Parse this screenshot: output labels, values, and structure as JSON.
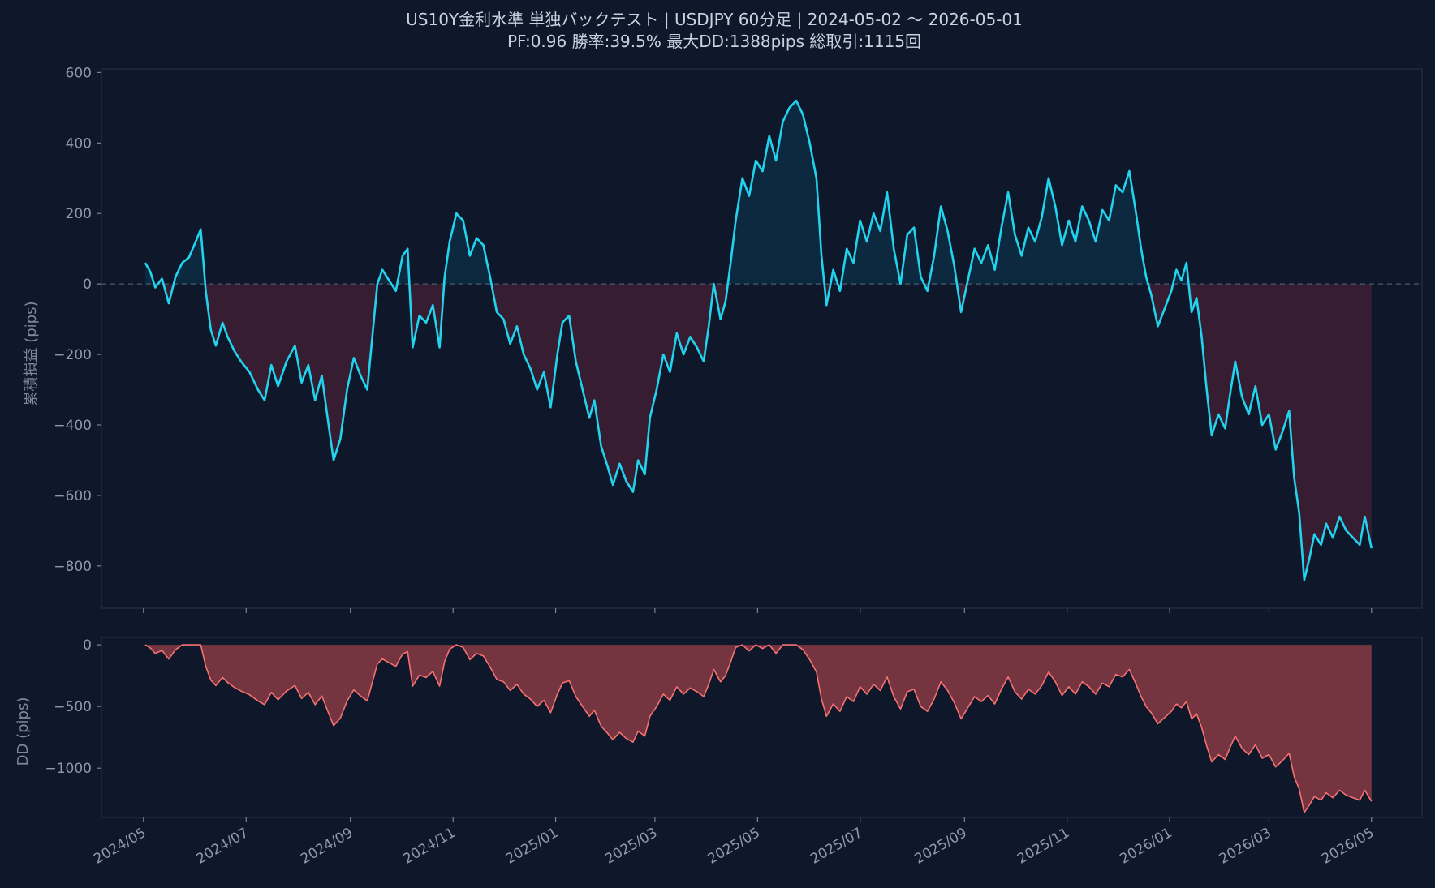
{
  "title": "US10Y金利水準 単独バックテスト | USDJPY 60分足 | 2024-05-02 〜 2026-05-01",
  "subtitle": "PF:0.96  勝率:39.5%  最大DD:1388pips  総取引:1115回",
  "colors": {
    "background": "#0f172a",
    "line": "#22d3ee",
    "positive_fill": "#0e2a40",
    "negative_fill": "#3b1e33",
    "dd_line": "#f87171",
    "dd_fill": "#7f3944",
    "frame": "#243044",
    "tick_text": "#8b9ab0",
    "zero_line": "#4b5a70"
  },
  "chart_data": [
    {
      "type": "line",
      "name": "equity",
      "ylabel": "累積損益 (pips)",
      "ylim": [
        -920,
        610
      ],
      "yticks": [
        600,
        400,
        200,
        0,
        -200,
        -400,
        -600,
        -800
      ],
      "ytick_labels": [
        "600",
        "400",
        "200",
        "0",
        "−200",
        "−400",
        "−600",
        "−800"
      ],
      "zero_line": true,
      "fill_to_zero": true,
      "x_start": "2024-05-02",
      "x_end": "2026-05-01",
      "points": [
        [
          "2024-05-02",
          60
        ],
        [
          "2024-05-05",
          35
        ],
        [
          "2024-05-08",
          -10
        ],
        [
          "2024-05-12",
          15
        ],
        [
          "2024-05-16",
          -55
        ],
        [
          "2024-05-20",
          20
        ],
        [
          "2024-05-24",
          60
        ],
        [
          "2024-05-28",
          75
        ],
        [
          "2024-06-01",
          120
        ],
        [
          "2024-06-04",
          155
        ],
        [
          "2024-06-07",
          -20
        ],
        [
          "2024-06-10",
          -130
        ],
        [
          "2024-06-13",
          -175
        ],
        [
          "2024-06-17",
          -110
        ],
        [
          "2024-06-20",
          -150
        ],
        [
          "2024-06-24",
          -190
        ],
        [
          "2024-06-28",
          -220
        ],
        [
          "2024-07-03",
          -250
        ],
        [
          "2024-07-08",
          -300
        ],
        [
          "2024-07-12",
          -330
        ],
        [
          "2024-07-16",
          -230
        ],
        [
          "2024-07-20",
          -290
        ],
        [
          "2024-07-25",
          -220
        ],
        [
          "2024-07-30",
          -175
        ],
        [
          "2024-08-03",
          -280
        ],
        [
          "2024-08-07",
          -230
        ],
        [
          "2024-08-11",
          -330
        ],
        [
          "2024-08-15",
          -260
        ],
        [
          "2024-08-19",
          -400
        ],
        [
          "2024-08-22",
          -500
        ],
        [
          "2024-08-26",
          -440
        ],
        [
          "2024-08-30",
          -300
        ],
        [
          "2024-09-03",
          -210
        ],
        [
          "2024-09-07",
          -260
        ],
        [
          "2024-09-11",
          -300
        ],
        [
          "2024-09-14",
          -150
        ],
        [
          "2024-09-17",
          0
        ],
        [
          "2024-09-20",
          40
        ],
        [
          "2024-09-24",
          10
        ],
        [
          "2024-09-28",
          -20
        ],
        [
          "2024-10-02",
          80
        ],
        [
          "2024-10-05",
          100
        ],
        [
          "2024-10-08",
          -180
        ],
        [
          "2024-10-12",
          -90
        ],
        [
          "2024-10-16",
          -110
        ],
        [
          "2024-10-20",
          -60
        ],
        [
          "2024-10-24",
          -180
        ],
        [
          "2024-10-27",
          20
        ],
        [
          "2024-10-30",
          120
        ],
        [
          "2024-11-03",
          200
        ],
        [
          "2024-11-07",
          180
        ],
        [
          "2024-11-11",
          80
        ],
        [
          "2024-11-15",
          130
        ],
        [
          "2024-11-19",
          110
        ],
        [
          "2024-11-23",
          20
        ],
        [
          "2024-11-27",
          -80
        ],
        [
          "2024-12-01",
          -100
        ],
        [
          "2024-12-05",
          -170
        ],
        [
          "2024-12-09",
          -120
        ],
        [
          "2024-12-13",
          -200
        ],
        [
          "2024-12-17",
          -240
        ],
        [
          "2024-12-21",
          -300
        ],
        [
          "2024-12-25",
          -250
        ],
        [
          "2024-12-29",
          -350
        ],
        [
          "2025-01-02",
          -200
        ],
        [
          "2025-01-05",
          -110
        ],
        [
          "2025-01-09",
          -90
        ],
        [
          "2025-01-13",
          -220
        ],
        [
          "2025-01-17",
          -300
        ],
        [
          "2025-01-21",
          -380
        ],
        [
          "2025-01-24",
          -330
        ],
        [
          "2025-01-28",
          -460
        ],
        [
          "2025-02-01",
          -520
        ],
        [
          "2025-02-04",
          -570
        ],
        [
          "2025-02-08",
          -510
        ],
        [
          "2025-02-12",
          -560
        ],
        [
          "2025-02-16",
          -590
        ],
        [
          "2025-02-19",
          -500
        ],
        [
          "2025-02-23",
          -540
        ],
        [
          "2025-02-26",
          -380
        ],
        [
          "2025-03-02",
          -300
        ],
        [
          "2025-03-06",
          -200
        ],
        [
          "2025-03-10",
          -250
        ],
        [
          "2025-03-14",
          -140
        ],
        [
          "2025-03-18",
          -200
        ],
        [
          "2025-03-22",
          -150
        ],
        [
          "2025-03-26",
          -180
        ],
        [
          "2025-03-30",
          -220
        ],
        [
          "2025-04-02",
          -120
        ],
        [
          "2025-04-05",
          0
        ],
        [
          "2025-04-09",
          -100
        ],
        [
          "2025-04-12",
          -50
        ],
        [
          "2025-04-15",
          60
        ],
        [
          "2025-04-18",
          180
        ],
        [
          "2025-04-22",
          300
        ],
        [
          "2025-04-26",
          250
        ],
        [
          "2025-04-30",
          350
        ],
        [
          "2025-05-04",
          320
        ],
        [
          "2025-05-08",
          420
        ],
        [
          "2025-05-12",
          350
        ],
        [
          "2025-05-16",
          460
        ],
        [
          "2025-05-20",
          500
        ],
        [
          "2025-05-24",
          520
        ],
        [
          "2025-05-28",
          480
        ],
        [
          "2025-06-01",
          400
        ],
        [
          "2025-06-05",
          300
        ],
        [
          "2025-06-08",
          80
        ],
        [
          "2025-06-11",
          -60
        ],
        [
          "2025-06-15",
          40
        ],
        [
          "2025-06-19",
          -20
        ],
        [
          "2025-06-23",
          100
        ],
        [
          "2025-06-27",
          60
        ],
        [
          "2025-07-01",
          180
        ],
        [
          "2025-07-05",
          120
        ],
        [
          "2025-07-09",
          200
        ],
        [
          "2025-07-13",
          150
        ],
        [
          "2025-07-17",
          260
        ],
        [
          "2025-07-21",
          100
        ],
        [
          "2025-07-25",
          0
        ],
        [
          "2025-07-29",
          140
        ],
        [
          "2025-08-02",
          160
        ],
        [
          "2025-08-06",
          20
        ],
        [
          "2025-08-10",
          -20
        ],
        [
          "2025-08-14",
          80
        ],
        [
          "2025-08-18",
          220
        ],
        [
          "2025-08-22",
          150
        ],
        [
          "2025-08-26",
          50
        ],
        [
          "2025-08-30",
          -80
        ],
        [
          "2025-09-03",
          10
        ],
        [
          "2025-09-07",
          100
        ],
        [
          "2025-09-11",
          60
        ],
        [
          "2025-09-15",
          110
        ],
        [
          "2025-09-19",
          40
        ],
        [
          "2025-09-23",
          160
        ],
        [
          "2025-09-27",
          260
        ],
        [
          "2025-10-01",
          140
        ],
        [
          "2025-10-05",
          80
        ],
        [
          "2025-10-09",
          160
        ],
        [
          "2025-10-13",
          120
        ],
        [
          "2025-10-17",
          190
        ],
        [
          "2025-10-21",
          300
        ],
        [
          "2025-10-25",
          220
        ],
        [
          "2025-10-29",
          110
        ],
        [
          "2025-11-02",
          180
        ],
        [
          "2025-11-06",
          120
        ],
        [
          "2025-11-10",
          220
        ],
        [
          "2025-11-14",
          180
        ],
        [
          "2025-11-18",
          120
        ],
        [
          "2025-11-22",
          210
        ],
        [
          "2025-11-26",
          180
        ],
        [
          "2025-11-30",
          280
        ],
        [
          "2025-12-04",
          260
        ],
        [
          "2025-12-08",
          320
        ],
        [
          "2025-12-12",
          200
        ],
        [
          "2025-12-15",
          100
        ],
        [
          "2025-12-18",
          20
        ],
        [
          "2025-12-21",
          -30
        ],
        [
          "2025-12-25",
          -120
        ],
        [
          "2025-12-29",
          -70
        ],
        [
          "2026-01-02",
          -20
        ],
        [
          "2026-01-05",
          40
        ],
        [
          "2026-01-08",
          10
        ],
        [
          "2026-01-11",
          60
        ],
        [
          "2026-01-14",
          -80
        ],
        [
          "2026-01-17",
          -40
        ],
        [
          "2026-01-20",
          -150
        ],
        [
          "2026-01-23",
          -300
        ],
        [
          "2026-01-26",
          -430
        ],
        [
          "2026-01-30",
          -370
        ],
        [
          "2026-02-03",
          -410
        ],
        [
          "2026-02-06",
          -310
        ],
        [
          "2026-02-09",
          -220
        ],
        [
          "2026-02-13",
          -320
        ],
        [
          "2026-02-17",
          -370
        ],
        [
          "2026-02-21",
          -290
        ],
        [
          "2026-02-25",
          -400
        ],
        [
          "2026-03-01",
          -370
        ],
        [
          "2026-03-05",
          -470
        ],
        [
          "2026-03-09",
          -420
        ],
        [
          "2026-03-13",
          -360
        ],
        [
          "2026-03-16",
          -550
        ],
        [
          "2026-03-19",
          -650
        ],
        [
          "2026-03-22",
          -840
        ],
        [
          "2026-03-25",
          -780
        ],
        [
          "2026-03-28",
          -710
        ],
        [
          "2026-04-01",
          -740
        ],
        [
          "2026-04-04",
          -680
        ],
        [
          "2026-04-08",
          -720
        ],
        [
          "2026-04-12",
          -660
        ],
        [
          "2026-04-16",
          -700
        ],
        [
          "2026-04-20",
          -720
        ],
        [
          "2026-04-24",
          -740
        ],
        [
          "2026-04-27",
          -660
        ],
        [
          "2026-05-01",
          -750
        ]
      ]
    },
    {
      "type": "area",
      "name": "drawdown",
      "ylabel": "DD (pips)",
      "ylim": [
        -1400,
        60
      ],
      "yticks": [
        0,
        -500,
        -1000
      ],
      "ytick_labels": [
        "0",
        "−500",
        "−1000"
      ],
      "derived_from": "equity",
      "xticks": [
        "2024-05-01",
        "2024-07-01",
        "2024-09-01",
        "2024-11-01",
        "2025-01-01",
        "2025-03-01",
        "2025-05-01",
        "2025-07-01",
        "2025-09-01",
        "2025-11-01",
        "2026-01-01",
        "2026-03-01",
        "2026-05-01"
      ],
      "xtick_labels": [
        "2024/05",
        "2024/07",
        "2024/09",
        "2024/11",
        "2025/01",
        "2025/03",
        "2025/05",
        "2025/07",
        "2025/09",
        "2025/11",
        "2026/01",
        "2026/03",
        "2026/05"
      ]
    }
  ]
}
